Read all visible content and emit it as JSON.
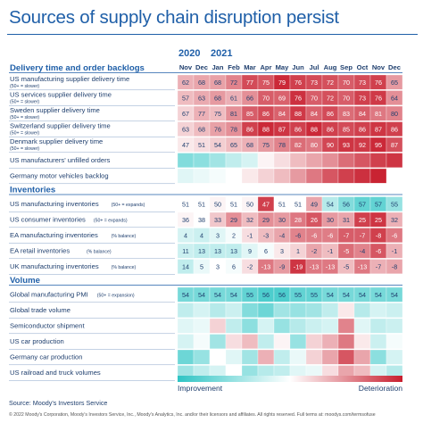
{
  "title": "Sources of supply chain disruption persist",
  "source": "Source: Moody's Investors Service",
  "footer": "© 2022 Moody's Corporation, Moody's Investors Service, Inc., Moody's Analytics, Inc. and/or their licensors and affiliates. All rights reserved. Full terms at: moodys.com/termsofuse",
  "chart_data": {
    "type": "heatmap",
    "years": [
      {
        "label": "2020",
        "start_index": 0
      },
      {
        "label": "2021",
        "start_index": 2
      }
    ],
    "months": [
      "Nov",
      "Dec",
      "Jan",
      "Feb",
      "Mar",
      "Apr",
      "May",
      "Jun",
      "Jul",
      "Aug",
      "Sep",
      "Oct",
      "Nov",
      "Dec"
    ],
    "scale": {
      "low_label": "Improvement",
      "high_label": "Deterioration",
      "low_color": "#2ec4c4",
      "mid_color": "#ffffff",
      "high_color": "#c81e2e"
    },
    "sections": [
      {
        "name": "Delivery time and order backlogs",
        "rows": [
          {
            "label": "US manufacturing supplier delivery time",
            "note": "(50+ = slower)",
            "values": [
              62,
              68,
              68,
              72,
              77,
              75,
              79,
              76,
              73,
              72,
              70,
              73,
              76,
              65
            ],
            "intensity": [
              0.35,
              0.4,
              0.42,
              0.55,
              0.8,
              0.75,
              0.95,
              0.85,
              0.8,
              0.78,
              0.72,
              0.8,
              0.85,
              0.45
            ]
          },
          {
            "label": "US services supplier delivery time",
            "note": "(50+ = slower)",
            "values": [
              57,
              63,
              68,
              61,
              66,
              70,
              69,
              76,
              70,
              72,
              70,
              73,
              76,
              64
            ],
            "intensity": [
              0.3,
              0.38,
              0.45,
              0.35,
              0.5,
              0.72,
              0.7,
              0.92,
              0.72,
              0.78,
              0.72,
              0.85,
              0.88,
              0.5
            ]
          },
          {
            "label": "Sweden supplier delivery time",
            "note": "(50+ = slower)",
            "values": [
              67,
              77,
              75,
              81,
              85,
              86,
              84,
              88,
              84,
              86,
              83,
              84,
              81,
              80
            ],
            "intensity": [
              0.2,
              0.35,
              0.3,
              0.5,
              0.72,
              0.8,
              0.7,
              0.88,
              0.7,
              0.8,
              0.65,
              0.72,
              0.6,
              0.55
            ]
          },
          {
            "label": "Switzerland supplier delivery time",
            "note": "(50+ = slower)",
            "values": [
              63,
              68,
              76,
              78,
              86,
              88,
              87,
              86,
              88,
              86,
              85,
              86,
              87,
              86
            ],
            "intensity": [
              0.2,
              0.3,
              0.42,
              0.5,
              0.85,
              0.95,
              0.9,
              0.85,
              0.95,
              0.85,
              0.8,
              0.85,
              0.9,
              0.85
            ]
          },
          {
            "label": "Denmark supplier delivery time",
            "note": "(50+ = slower)",
            "values": [
              47,
              51,
              54,
              65,
              68,
              75,
              78,
              82,
              80,
              90,
              93,
              92,
              95,
              87
            ],
            "intensity": [
              0.1,
              0.15,
              0.22,
              0.3,
              0.35,
              0.45,
              0.55,
              0.65,
              0.6,
              0.82,
              0.9,
              0.88,
              0.95,
              0.78
            ]
          },
          {
            "label": "US manufacturers' unfilled orders",
            "note": "",
            "values": [],
            "intensity": [
              -0.6,
              -0.55,
              -0.45,
              -0.3,
              -0.2,
              0.05,
              0.15,
              0.3,
              0.4,
              0.5,
              0.65,
              0.75,
              0.85,
              0.9
            ]
          },
          {
            "label": "Germany motor vehicles backlog",
            "note": "",
            "values": [],
            "intensity": [
              -0.15,
              -0.1,
              -0.05,
              0.0,
              0.1,
              0.2,
              0.3,
              0.45,
              0.6,
              0.75,
              0.85,
              0.92,
              0.98,
              null
            ]
          }
        ]
      },
      {
        "name": "Inventories",
        "rows": [
          {
            "label": "US manufacturing inventories",
            "note": "(50+ = expands)",
            "values": [
              51,
              51,
              50,
              51,
              50,
              47,
              51,
              51,
              49,
              54,
              56,
              57,
              57,
              55
            ],
            "intensity": [
              0.0,
              0.0,
              0.05,
              0.0,
              0.05,
              0.85,
              0.0,
              0.0,
              0.4,
              -0.35,
              -0.6,
              -0.75,
              -0.75,
              -0.5
            ]
          },
          {
            "label": "US consumer inventories",
            "note": "(50+ = expands)",
            "values": [
              36,
              38,
              33,
              29,
              32,
              29,
              30,
              28,
              26,
              30,
              31,
              25,
              25,
              32
            ],
            "intensity": [
              0.05,
              0.0,
              0.25,
              0.5,
              0.3,
              0.5,
              0.45,
              0.6,
              0.75,
              0.45,
              0.4,
              0.85,
              0.9,
              0.35
            ]
          },
          {
            "label": "EA manufacturing inventories",
            "note": "(% balance)",
            "values": [
              4,
              4,
              3,
              2,
              -1,
              -3,
              -4,
              -6,
              -6,
              -6,
              -7,
              -7,
              -8,
              -6
            ],
            "intensity": [
              -0.2,
              -0.25,
              -0.15,
              -0.05,
              0.15,
              0.3,
              0.4,
              0.55,
              0.58,
              0.58,
              0.72,
              0.72,
              0.85,
              0.6
            ]
          },
          {
            "label": "EA retail inventories",
            "note": "(% balance)",
            "values": [
              11,
              13,
              13,
              13,
              9,
              6,
              3,
              1,
              -2,
              -1,
              -5,
              -4,
              -6,
              -1
            ],
            "intensity": [
              -0.25,
              -0.3,
              -0.3,
              -0.3,
              -0.15,
              -0.05,
              0.1,
              0.2,
              0.4,
              0.3,
              0.65,
              0.55,
              0.75,
              0.35
            ]
          },
          {
            "label": "UK manufacturing inventories",
            "note": "(% balance)",
            "values": [
              14,
              5,
              3,
              6,
              -2,
              -13,
              -9,
              -19,
              -13,
              -13,
              -5,
              -13,
              -7,
              -8
            ],
            "intensity": [
              -0.3,
              -0.1,
              0.0,
              -0.05,
              0.15,
              0.6,
              0.45,
              0.9,
              0.6,
              0.6,
              0.3,
              0.6,
              0.35,
              0.4
            ]
          }
        ]
      },
      {
        "name": "Volume",
        "rows": [
          {
            "label": "Global manufacturing PMI",
            "note": "(50+ = expansion)",
            "values": [
              54,
              54,
              54,
              54,
              55,
              56,
              56,
              55,
              55,
              54,
              54,
              54,
              54,
              54
            ],
            "intensity": [
              -0.65,
              -0.65,
              -0.65,
              -0.65,
              -0.75,
              -0.85,
              -0.85,
              -0.75,
              -0.75,
              -0.65,
              -0.65,
              -0.65,
              -0.65,
              -0.65
            ]
          },
          {
            "label": "Global trade volume",
            "note": "",
            "values": [],
            "intensity": [
              -0.3,
              -0.2,
              -0.35,
              -0.25,
              -0.6,
              -0.7,
              -0.45,
              -0.5,
              -0.45,
              -0.3,
              0.1,
              -0.35,
              -0.2,
              -0.25
            ]
          },
          {
            "label": "Semiconductor shipment",
            "note": "",
            "values": [],
            "intensity": [
              -0.15,
              -0.1,
              0.2,
              -0.3,
              -0.55,
              -0.2,
              -0.5,
              -0.35,
              -0.25,
              -0.2,
              0.55,
              -0.15,
              -0.3,
              -0.25
            ]
          },
          {
            "label": "US car production",
            "note": "",
            "values": [],
            "intensity": [
              -0.2,
              -0.05,
              -0.45,
              0.15,
              0.3,
              -0.3,
              0.05,
              -0.5,
              0.2,
              0.35,
              0.6,
              0.1,
              -0.25,
              -0.05
            ]
          },
          {
            "label": "Germany car production",
            "note": "",
            "values": [],
            "intensity": [
              -0.7,
              -0.5,
              0.0,
              -0.15,
              -0.45,
              0.35,
              -0.3,
              -0.1,
              0.2,
              0.4,
              0.75,
              0.4,
              -0.55,
              -0.2
            ]
          },
          {
            "label": "US railroad and truck volumes",
            "note": "",
            "values": [],
            "intensity": [
              -0.45,
              -0.3,
              -0.2,
              0.0,
              -0.5,
              -0.35,
              -0.3,
              -0.15,
              -0.1,
              0.15,
              0.4,
              0.3,
              -0.2,
              -0.35
            ]
          }
        ]
      }
    ]
  }
}
